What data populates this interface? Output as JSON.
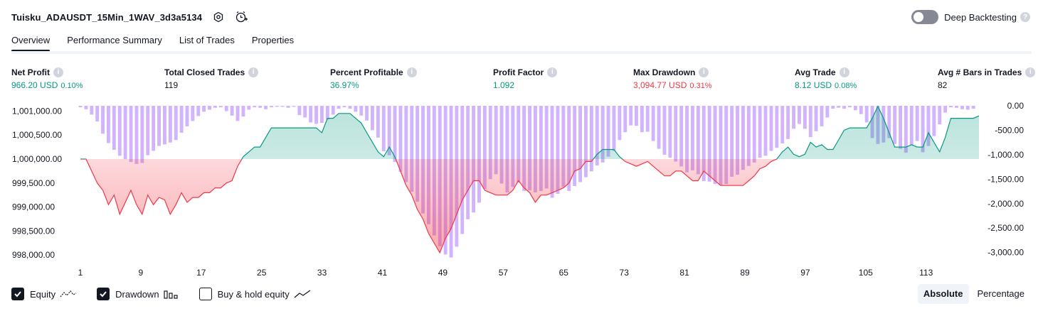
{
  "header": {
    "title": "Tuisku_ADAUSDT_15Min_1WAV_3d3a5134",
    "deep_backtesting_label": "Deep Backtesting"
  },
  "tabs": [
    {
      "label": "Overview",
      "active": true
    },
    {
      "label": "Performance Summary",
      "active": false
    },
    {
      "label": "List of Trades",
      "active": false
    },
    {
      "label": "Properties",
      "active": false
    }
  ],
  "metrics": [
    {
      "label": "Net Profit",
      "value": "966.20 USD",
      "sub": "0.10%",
      "color": "green"
    },
    {
      "label": "Total Closed Trades",
      "value": "119",
      "sub": "",
      "color": "neutral"
    },
    {
      "label": "Percent Profitable",
      "value": "36.97%",
      "sub": "",
      "color": "green"
    },
    {
      "label": "Profit Factor",
      "value": "1.092",
      "sub": "",
      "color": "green"
    },
    {
      "label": "Max Drawdown",
      "value": "3,094.77 USD",
      "sub": "0.31%",
      "color": "red"
    },
    {
      "label": "Avg Trade",
      "value": "8.12 USD",
      "sub": "0.08%",
      "color": "green"
    },
    {
      "label": "Avg # Bars in Trades",
      "value": "82",
      "sub": "",
      "color": "neutral"
    }
  ],
  "chart_data": {
    "type": "area",
    "x_ticks": [
      "1",
      "9",
      "17",
      "25",
      "33",
      "41",
      "49",
      "57",
      "65",
      "73",
      "81",
      "89",
      "97",
      "105",
      "113"
    ],
    "left_axis": {
      "ticks": [
        "1,001,000.00",
        "1,000,500.00",
        "1,000,000.00",
        "999,500.00",
        "999,000.00",
        "998,500.00",
        "998,000.00"
      ],
      "range": [
        997900,
        1001110
      ],
      "baseline": 1000000
    },
    "right_axis": {
      "ticks": [
        "0.00",
        "-500.00",
        "-1,000.00",
        "-1,500.00",
        "-2,000.00",
        "-2,500.00",
        "-3,000.00"
      ],
      "range": [
        -3150,
        0
      ]
    },
    "series": [
      {
        "name": "Equity",
        "values": [
          1000000,
          1000000,
          999750,
          999500,
          999350,
          999050,
          999250,
          998850,
          999100,
          999350,
          999050,
          998850,
          999250,
          999050,
          999200,
          999150,
          998850,
          999050,
          999300,
          999100,
          999200,
          999200,
          999300,
          999300,
          999400,
          999400,
          999500,
          999550,
          999850,
          1000050,
          1000150,
          1000250,
          1000250,
          1000450,
          1000650,
          1000650,
          1000650,
          1000650,
          1000650,
          1000650,
          1000650,
          1000650,
          1000650,
          1000550,
          1000850,
          1000850,
          1000950,
          1000950,
          1000950,
          1000850,
          1000750,
          1000550,
          1000350,
          1000150,
          1000050,
          1000250,
          1000050,
          999750,
          999450,
          999250,
          998950,
          998750,
          998450,
          998250,
          998050,
          998350,
          998550,
          998850,
          999150,
          999350,
          999550,
          999550,
          999350,
          999300,
          999250,
          999250,
          999250,
          999350,
          999550,
          999400,
          999300,
          999100,
          999250,
          999250,
          999300,
          999350,
          999400,
          999500,
          999750,
          999800,
          999950,
          999950,
          1000100,
          1000200,
          1000200,
          1000200,
          1000050,
          999950,
          999900,
          999850,
          999900,
          999950,
          999850,
          999750,
          999650,
          999650,
          999750,
          999750,
          999650,
          999550,
          999550,
          999750,
          999650,
          999550,
          999450,
          999450,
          999450,
          999450,
          999450,
          999550,
          999650,
          999800,
          999850,
          999950,
          1000000,
          1000150,
          1000250,
          1000100,
          1000050,
          1000100,
          1000350,
          1000250,
          1000300,
          1000200,
          1000200,
          1000400,
          1000600,
          1000650,
          1000650,
          1000650,
          1000650,
          1000850,
          1001100,
          1000850,
          1000550,
          1000250,
          1000250,
          1000250,
          1000300,
          1000250,
          1000250,
          1000550,
          1000350,
          1000150,
          1000450,
          1000850,
          1000850,
          1000850,
          1000850,
          1000850,
          1000900
        ]
      },
      {
        "name": "Drawdown",
        "values": [
          -30,
          -70,
          -180,
          -320,
          -570,
          -760,
          -900,
          -1020,
          -1090,
          -1150,
          -1190,
          -1170,
          -1010,
          -920,
          -820,
          -790,
          -750,
          -700,
          -550,
          -420,
          -310,
          -210,
          -120,
          -80,
          -40,
          -30,
          -110,
          -200,
          -310,
          -220,
          -80,
          -30,
          -40,
          -70,
          -30,
          -20,
          -20,
          -40,
          -20,
          -190,
          -240,
          -340,
          -370,
          -350,
          -280,
          -180,
          -60,
          -30,
          -60,
          -120,
          -200,
          -300,
          -500,
          -650,
          -930,
          -1010,
          -1150,
          -1350,
          -1560,
          -1760,
          -1960,
          -2200,
          -2420,
          -2650,
          -2870,
          -3040,
          -3100,
          -2880,
          -2620,
          -2320,
          -2180,
          -1980,
          -1700,
          -1500,
          -1400,
          -1590,
          -1770,
          -1660,
          -1570,
          -1740,
          -1730,
          -1770,
          -1740,
          -1690,
          -1880,
          -1800,
          -1660,
          -1740,
          -1640,
          -1560,
          -1460,
          -1340,
          -1220,
          -1160,
          -1040,
          -920,
          -700,
          -540,
          -400,
          -410,
          -540,
          -530,
          -720,
          -880,
          -1000,
          -1060,
          -1140,
          -1240,
          -1360,
          -1320,
          -1400,
          -1540,
          -1550,
          -1600,
          -1620,
          -1600,
          -1450,
          -1410,
          -1310,
          -1230,
          -1160,
          -1060,
          -1020,
          -920,
          -860,
          -770,
          -680,
          -470,
          -370,
          -470,
          -640,
          -520,
          -420,
          -240,
          -60,
          -40,
          -60,
          -30,
          -90,
          -170,
          -340,
          -660,
          -780,
          -750,
          -660,
          -780,
          -880,
          -960,
          -800,
          -720,
          -950,
          -820,
          -620,
          -380,
          -140,
          -30,
          -40,
          -70,
          -80,
          -60
        ]
      }
    ],
    "legend": [
      "Equity",
      "Drawdown",
      "Buy & hold equity"
    ]
  },
  "toggles": [
    {
      "label": "Equity",
      "checked": true
    },
    {
      "label": "Drawdown",
      "checked": true
    },
    {
      "label": "Buy & hold equity",
      "checked": false
    }
  ],
  "mode": {
    "absolute_label": "Absolute",
    "percentage_label": "Percentage",
    "active": "Absolute"
  },
  "colors": {
    "green": "#089981",
    "red": "#f23645",
    "drawdown_bar": "#d1b3fe",
    "equity_fill_up": "#c8ece3",
    "equity_fill_down": "#f7b8c2"
  }
}
